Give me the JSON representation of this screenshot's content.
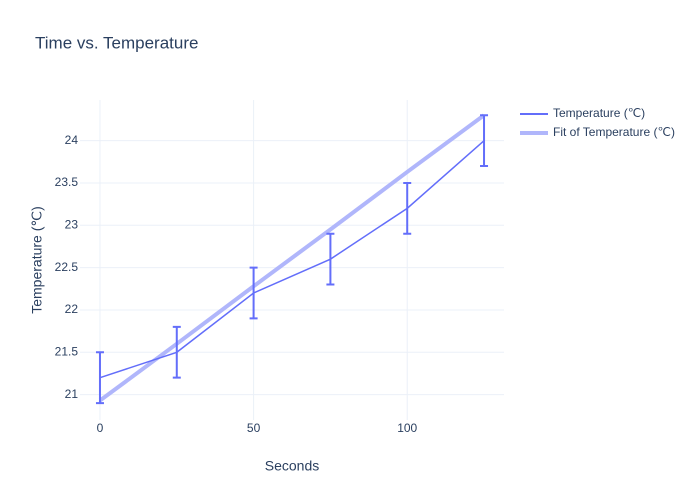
{
  "chart_data": {
    "type": "line",
    "title": "Time vs. Temperature",
    "x_label": "Seconds",
    "y_label": "Temperature (℃)",
    "x": [
      0,
      25,
      50,
      75,
      100,
      125
    ],
    "series": [
      {
        "name": "Temperature (℃)",
        "color": "#636efa",
        "values": [
          21.2,
          21.5,
          22.2,
          22.6,
          23.2,
          24.0
        ],
        "errors": [
          0.3,
          0.3,
          0.3,
          0.3,
          0.3,
          0.3
        ]
      },
      {
        "name": "Fit of Temperature (℃)",
        "color": "#b0b6fb",
        "values": [
          20.93,
          21.6,
          22.28,
          22.95,
          23.63,
          24.3
        ]
      }
    ],
    "xlim": [
      -6.5,
      131.5
    ],
    "ylim": [
      20.7,
      24.48
    ],
    "xticks": [
      0,
      50,
      100
    ],
    "yticks": [
      21,
      21.5,
      22,
      22.5,
      23,
      23.5,
      24
    ],
    "grid": true,
    "legend": "right"
  }
}
